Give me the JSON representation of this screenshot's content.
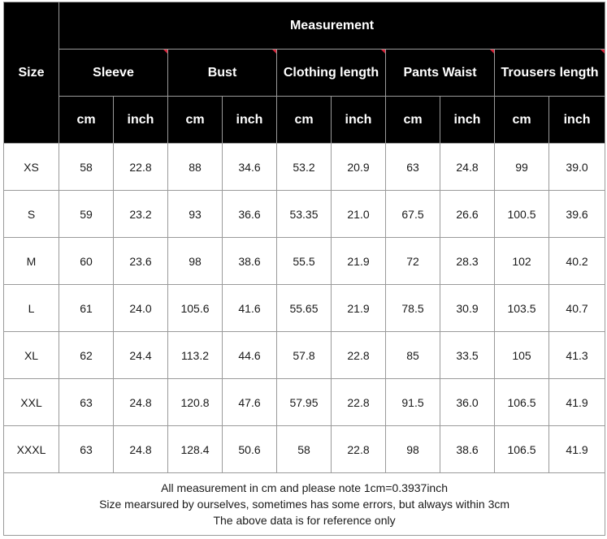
{
  "chart_data": {
    "type": "table",
    "header": {
      "size_label": "Size",
      "measurement_label": "Measurement",
      "groups": [
        "Sleeve",
        "Bust",
        "Clothing length",
        "Pants Waist",
        "Trousers length"
      ],
      "units": [
        "cm",
        "inch",
        "cm",
        "inch",
        "cm",
        "inch",
        "cm",
        "inch",
        "cm",
        "inch"
      ]
    },
    "rows": [
      {
        "size": "XS",
        "values": [
          "58",
          "22.8",
          "88",
          "34.6",
          "53.2",
          "20.9",
          "63",
          "24.8",
          "99",
          "39.0"
        ]
      },
      {
        "size": "S",
        "values": [
          "59",
          "23.2",
          "93",
          "36.6",
          "53.35",
          "21.0",
          "67.5",
          "26.6",
          "100.5",
          "39.6"
        ]
      },
      {
        "size": "M",
        "values": [
          "60",
          "23.6",
          "98",
          "38.6",
          "55.5",
          "21.9",
          "72",
          "28.3",
          "102",
          "40.2"
        ]
      },
      {
        "size": "L",
        "values": [
          "61",
          "24.0",
          "105.6",
          "41.6",
          "55.65",
          "21.9",
          "78.5",
          "30.9",
          "103.5",
          "40.7"
        ]
      },
      {
        "size": "XL",
        "values": [
          "62",
          "24.4",
          "113.2",
          "44.6",
          "57.8",
          "22.8",
          "85",
          "33.5",
          "105",
          "41.3"
        ]
      },
      {
        "size": "XXL",
        "values": [
          "63",
          "24.8",
          "120.8",
          "47.6",
          "57.95",
          "22.8",
          "91.5",
          "36.0",
          "106.5",
          "41.9"
        ]
      },
      {
        "size": "XXXL",
        "values": [
          "63",
          "24.8",
          "128.4",
          "50.6",
          "58",
          "22.8",
          "98",
          "38.6",
          "106.5",
          "41.9"
        ]
      }
    ],
    "notes": [
      "All measurement in cm and please note 1cm=0.3937inch",
      "Size mearsured by ourselves, sometimes has some errors, but always within 3cm",
      "The above data is for reference only"
    ]
  },
  "colors": {
    "header_background": "#000000",
    "header_text": "#ffffff",
    "corner_marker": "#d6243a",
    "grid_line": "#9a9a9a"
  }
}
